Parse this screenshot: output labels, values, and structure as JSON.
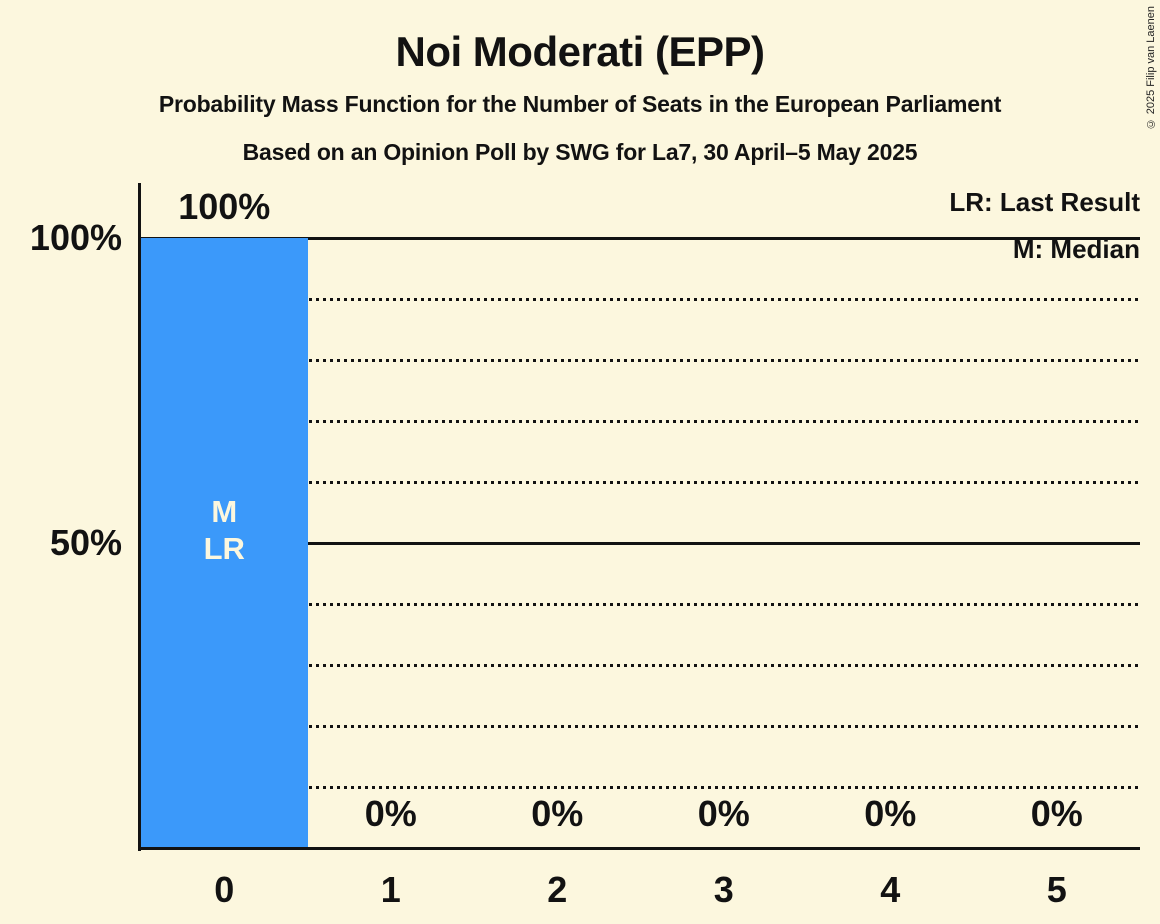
{
  "chart_data": {
    "type": "bar",
    "title": "Noi Moderati (EPP)",
    "subtitle": "Probability Mass Function for the Number of Seats in the European Parliament",
    "poll_details": "Based on an Opinion Poll by SWG for La7, 30 April–5 May 2025",
    "categories": [
      "0",
      "1",
      "2",
      "3",
      "4",
      "5"
    ],
    "values": [
      100,
      0,
      0,
      0,
      0,
      0
    ],
    "value_labels": [
      "100%",
      "0%",
      "0%",
      "0%",
      "0%",
      "0%"
    ],
    "ylim": [
      0,
      100
    ],
    "yticks": [
      100,
      50
    ],
    "ytick_labels": [
      "100%",
      "50%"
    ],
    "gridlines": [
      {
        "value": 100,
        "style": "solid"
      },
      {
        "value": 90,
        "style": "dotted"
      },
      {
        "value": 80,
        "style": "dotted"
      },
      {
        "value": 70,
        "style": "dotted"
      },
      {
        "value": 60,
        "style": "dotted"
      },
      {
        "value": 50,
        "style": "solid"
      },
      {
        "value": 40,
        "style": "dotted"
      },
      {
        "value": 30,
        "style": "dotted"
      },
      {
        "value": 20,
        "style": "dotted"
      },
      {
        "value": 10,
        "style": "dotted"
      }
    ],
    "legend": [
      {
        "label": "LR: Last Result"
      },
      {
        "label": "M: Median"
      }
    ],
    "annotations": [
      {
        "category_index": 0,
        "lines": [
          "M",
          "LR"
        ]
      }
    ],
    "colors": {
      "bar": "#3B99FA",
      "background": "#FCF7DE",
      "text": "#121212",
      "bar_label": "#FCF7DE"
    },
    "copyright": "© 2025 Filip van Laenen"
  }
}
